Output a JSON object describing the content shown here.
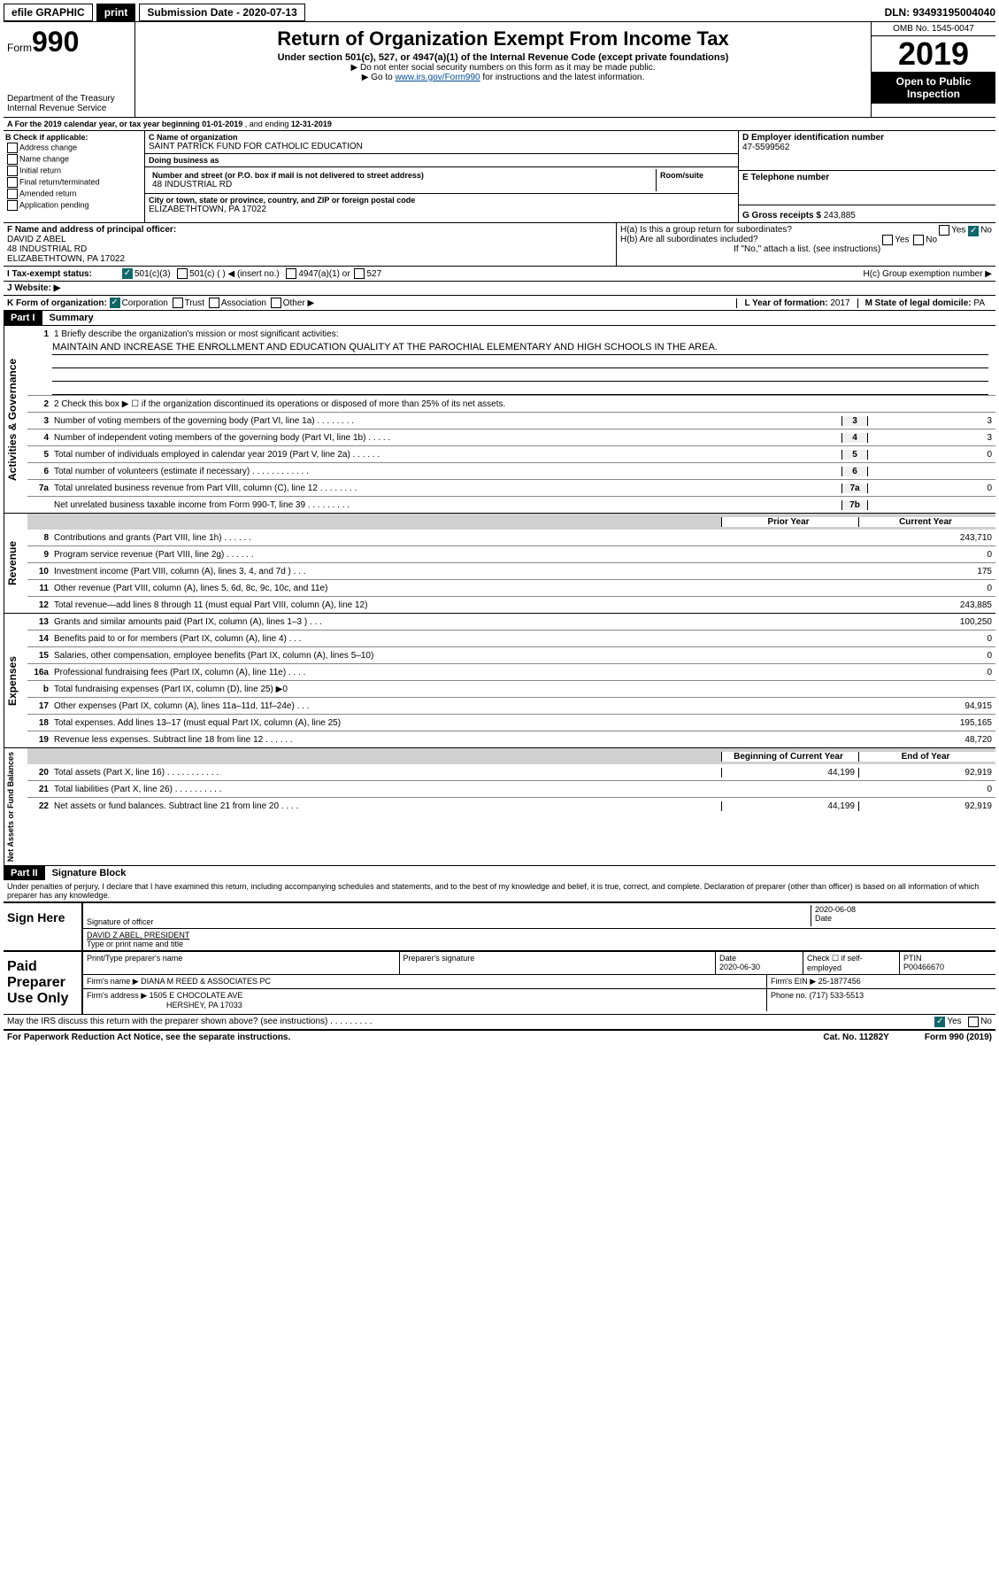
{
  "top": {
    "efile": "efile GRAPHIC",
    "print": "print",
    "submission_label": "Submission Date - 2020-07-13",
    "dln_label": "DLN: 93493195004040"
  },
  "header": {
    "form_prefix": "Form",
    "form_number": "990",
    "dept": "Department of the Treasury",
    "irs": "Internal Revenue Service",
    "title": "Return of Organization Exempt From Income Tax",
    "sub1": "Under section 501(c), 527, or 4947(a)(1) of the Internal Revenue Code (except private foundations)",
    "sub2": "▶ Do not enter social security numbers on this form as it may be made public.",
    "sub3_prefix": "▶ Go to ",
    "sub3_link": "www.irs.gov/Form990",
    "sub3_suffix": " for instructions and the latest information.",
    "omb": "OMB No. 1545-0047",
    "year": "2019",
    "open": "Open to Public Inspection"
  },
  "period": {
    "text_prefix": "A For the 2019 calendar year, or tax year beginning ",
    "begin": "01-01-2019",
    "mid": " , and ending ",
    "end": "12-31-2019"
  },
  "boxB": {
    "label": "B Check if applicable:",
    "opts": [
      "Address change",
      "Name change",
      "Initial return",
      "Final return/terminated",
      "Amended return",
      "Application pending"
    ]
  },
  "boxC": {
    "name_label": "C Name of organization",
    "name": "SAINT PATRICK FUND FOR CATHOLIC EDUCATION",
    "dba_label": "Doing business as",
    "dba": "",
    "addr_label": "Number and street (or P.O. box if mail is not delivered to street address)",
    "room_label": "Room/suite",
    "addr": "48 INDUSTRIAL RD",
    "city_label": "City or town, state or province, country, and ZIP or foreign postal code",
    "city": "ELIZABETHTOWN, PA  17022"
  },
  "boxD": {
    "label": "D Employer identification number",
    "value": "47-5599562"
  },
  "boxE": {
    "label": "E Telephone number",
    "value": ""
  },
  "boxG": {
    "label": "G Gross receipts $",
    "value": "243,885"
  },
  "boxF": {
    "label": "F  Name and address of principal officer:",
    "name": "DAVID Z ABEL",
    "addr1": "48 INDUSTRIAL RD",
    "addr2": "ELIZABETHTOWN, PA  17022"
  },
  "boxH": {
    "a": "H(a)  Is this a group return for subordinates?",
    "a_yes": "Yes",
    "a_no": "No",
    "b": "H(b)  Are all subordinates included?",
    "b_yes": "Yes",
    "b_no": "No",
    "b_note": "If \"No,\" attach a list. (see instructions)",
    "c": "H(c)  Group exemption number ▶"
  },
  "rowI": {
    "label": "I    Tax-exempt status:",
    "opt1": "501(c)(3)",
    "opt2": "501(c) (  ) ◀ (insert no.)",
    "opt3": "4947(a)(1) or",
    "opt4": "527"
  },
  "rowJ": {
    "label": "J    Website: ▶"
  },
  "rowK": {
    "label": "K Form of organization:",
    "opts": [
      "Corporation",
      "Trust",
      "Association",
      "Other ▶"
    ]
  },
  "rowL": {
    "label": "L Year of formation:",
    "value": "2017"
  },
  "rowM": {
    "label": "M State of legal domicile:",
    "value": "PA"
  },
  "part1": {
    "tag": "Part I",
    "title": "Summary",
    "line1_label": "1  Briefly describe the organization's mission or most significant activities:",
    "line1_text": "MAINTAIN AND INCREASE THE ENROLLMENT AND EDUCATION QUALITY AT THE PAROCHIAL ELEMENTARY AND HIGH SCHOOLS IN THE AREA.",
    "line2": "2    Check this box ▶ ☐  if the organization discontinued its operations or disposed of more than 25% of its net assets.",
    "lines_top": [
      {
        "n": "3",
        "desc": "Number of voting members of the governing body (Part VI, line 1a)  .    .    .    .    .    .    .    .",
        "box": "3",
        "val": "3"
      },
      {
        "n": "4",
        "desc": "Number of independent voting members of the governing body (Part VI, line 1b)   .    .    .    .    .",
        "box": "4",
        "val": "3"
      },
      {
        "n": "5",
        "desc": "Total number of individuals employed in calendar year 2019 (Part V, line 2a)   .    .    .    .    .    .",
        "box": "5",
        "val": "0"
      },
      {
        "n": "6",
        "desc": "Total number of volunteers (estimate if necessary)   .    .    .    .    .    .    .    .    .    .    .    .",
        "box": "6",
        "val": ""
      },
      {
        "n": "7a",
        "desc": "Total unrelated business revenue from Part VIII, column (C), line 12   .    .    .    .    .    .    .    .",
        "box": "7a",
        "val": "0"
      },
      {
        "n": "",
        "desc": "Net unrelated business taxable income from Form 990-T, line 39   .    .    .    .    .    .    .    .    .",
        "box": "7b",
        "val": ""
      }
    ],
    "col_headers": {
      "prior": "Prior Year",
      "curr": "Current Year"
    },
    "revenue_label": "Revenue",
    "revenue": [
      {
        "n": "8",
        "desc": "Contributions and grants (Part VIII, line 1h)   .    .    .    .    .    .",
        "prior": "",
        "curr": "243,710"
      },
      {
        "n": "9",
        "desc": "Program service revenue (Part VIII, line 2g)   .    .    .    .    .    .",
        "prior": "",
        "curr": "0"
      },
      {
        "n": "10",
        "desc": "Investment income (Part VIII, column (A), lines 3, 4, and 7d )   .    .    .",
        "prior": "",
        "curr": "175"
      },
      {
        "n": "11",
        "desc": "Other revenue (Part VIII, column (A), lines 5, 6d, 8c, 9c, 10c, and 11e)",
        "prior": "",
        "curr": "0"
      },
      {
        "n": "12",
        "desc": "Total revenue—add lines 8 through 11 (must equal Part VIII, column (A), line 12)",
        "prior": "",
        "curr": "243,885"
      }
    ],
    "expenses_label": "Expenses",
    "expenses": [
      {
        "n": "13",
        "desc": "Grants and similar amounts paid (Part IX, column (A), lines 1–3 )   .    .    .",
        "prior": "",
        "curr": "100,250"
      },
      {
        "n": "14",
        "desc": "Benefits paid to or for members (Part IX, column (A), line 4)   .    .    .",
        "prior": "",
        "curr": "0"
      },
      {
        "n": "15",
        "desc": "Salaries, other compensation, employee benefits (Part IX, column (A), lines 5–10)",
        "prior": "",
        "curr": "0"
      },
      {
        "n": "16a",
        "desc": "Professional fundraising fees (Part IX, column (A), line 11e)   .    .    .    .",
        "prior": "",
        "curr": "0"
      },
      {
        "n": "b",
        "desc": "Total fundraising expenses (Part IX, column (D), line 25) ▶0",
        "prior": "shade",
        "curr": "shade"
      },
      {
        "n": "17",
        "desc": "Other expenses (Part IX, column (A), lines 11a–11d, 11f–24e)   .    .    .",
        "prior": "",
        "curr": "94,915"
      },
      {
        "n": "18",
        "desc": "Total expenses. Add lines 13–17 (must equal Part IX, column (A), line 25)",
        "prior": "",
        "curr": "195,165"
      },
      {
        "n": "19",
        "desc": "Revenue less expenses. Subtract line 18 from line 12   .    .    .    .    .    .",
        "prior": "",
        "curr": "48,720"
      }
    ],
    "net_label": "Net Assets or Fund Balances",
    "net_headers": {
      "prior": "Beginning of Current Year",
      "curr": "End of Year"
    },
    "net": [
      {
        "n": "20",
        "desc": "Total assets (Part X, line 16)   .    .    .    .    .    .    .    .    .    .    .",
        "prior": "44,199",
        "curr": "92,919"
      },
      {
        "n": "21",
        "desc": "Total liabilities (Part X, line 26)   .    .    .    .    .    .    .    .    .    .",
        "prior": "",
        "curr": "0"
      },
      {
        "n": "22",
        "desc": "Net assets or fund balances. Subtract line 21 from line 20   .    .    .    .",
        "prior": "44,199",
        "curr": "92,919"
      }
    ],
    "gov_label": "Activities & Governance"
  },
  "part2": {
    "tag": "Part II",
    "title": "Signature Block",
    "declaration": "Under penalties of perjury, I declare that I have examined this return, including accompanying schedules and statements, and to the best of my knowledge and belief, it is true, correct, and complete. Declaration of preparer (other than officer) is based on all information of which preparer has any knowledge."
  },
  "sign": {
    "here": "Sign Here",
    "sig_officer": "Signature of officer",
    "date": "2020-06-08",
    "date_label": "Date",
    "name": "DAVID Z ABEL, PRESIDENT",
    "name_label": "Type or print name and title"
  },
  "paid": {
    "label": "Paid Preparer Use Only",
    "col1": "Print/Type preparer's name",
    "col2": "Preparer's signature",
    "col3": "Date",
    "col3_val": "2020-06-30",
    "col4": "Check ☐ if self-employed",
    "col5": "PTIN",
    "col5_val": "P00466670",
    "firm_name_label": "Firm's name    ▶",
    "firm_name": "DIANA M REED & ASSOCIATES PC",
    "firm_ein_label": "Firm's EIN ▶",
    "firm_ein": "25-1877456",
    "firm_addr_label": "Firm's address ▶",
    "firm_addr1": "1505 E CHOCOLATE AVE",
    "firm_addr2": "HERSHEY, PA  17033",
    "phone_label": "Phone no.",
    "phone": "(717) 533-5513"
  },
  "footer": {
    "discuss": "May the IRS discuss this return with the preparer shown above? (see instructions)   .    .    .    .    .    .    .    .    .",
    "yes": "Yes",
    "no": "No",
    "pra": "For Paperwork Reduction Act Notice, see the separate instructions.",
    "cat": "Cat. No. 11282Y",
    "form": "Form 990 (2019)"
  }
}
